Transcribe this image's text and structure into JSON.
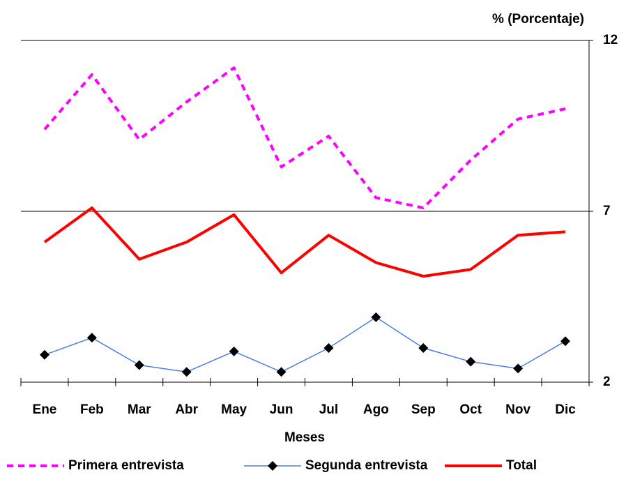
{
  "chart_data": {
    "type": "line",
    "y_label": "% (Porcentaje)",
    "x_label": "Meses",
    "categories": [
      "Ene",
      "Feb",
      "Mar",
      "Abr",
      "May",
      "Jun",
      "Jul",
      "Ago",
      "Sep",
      "Oct",
      "Nov",
      "Dic"
    ],
    "series": [
      {
        "name": "Primera entrevista",
        "color": "#ff00ff",
        "dash": true,
        "marker": false,
        "values": [
          9.4,
          11.0,
          9.1,
          10.2,
          11.2,
          8.3,
          9.2,
          7.4,
          7.1,
          8.5,
          9.7,
          10.0
        ]
      },
      {
        "name": "Segunda entrevista",
        "color": "#4a7fe0",
        "dash": false,
        "marker": true,
        "values": [
          2.8,
          3.3,
          2.5,
          2.3,
          2.9,
          2.3,
          3.0,
          3.9,
          3.0,
          2.6,
          2.4,
          3.2
        ]
      },
      {
        "name": "Total",
        "color": "#ff0000",
        "dash": false,
        "marker": false,
        "values": [
          6.1,
          7.1,
          5.6,
          6.1,
          6.9,
          5.2,
          6.3,
          5.5,
          5.1,
          5.3,
          6.3,
          6.4
        ]
      }
    ],
    "ylim": [
      2,
      12
    ],
    "yticks": [
      2,
      7,
      12
    ],
    "grid": true,
    "y_axis_side": "right",
    "legend": "bottom"
  }
}
